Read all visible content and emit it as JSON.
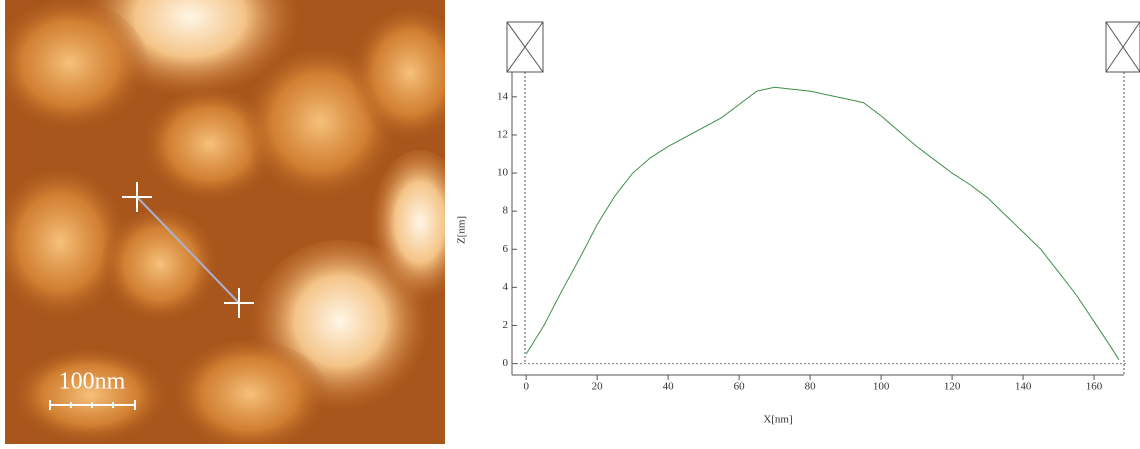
{
  "image": {
    "scale_label": "100nm"
  },
  "chart_data": {
    "type": "line",
    "xlabel": "X[nm]",
    "ylabel": "Z[nm]",
    "x": [
      0,
      5,
      10,
      15,
      20,
      25,
      30,
      35,
      40,
      45,
      50,
      55,
      60,
      65,
      70,
      75,
      80,
      85,
      90,
      95,
      100,
      105,
      110,
      115,
      120,
      125,
      130,
      135,
      140,
      145,
      150,
      155,
      160,
      165,
      167
    ],
    "series": [
      {
        "color": "#3f8f4a",
        "values": [
          0.5,
          2,
          3.8,
          5.5,
          7.3,
          8.8,
          10,
          10.8,
          11.4,
          11.9,
          12.4,
          12.9,
          13.6,
          14.3,
          14.5,
          14.4,
          14.3,
          14.1,
          13.9,
          13.7,
          13,
          12.2,
          11.4,
          10.7,
          10,
          9.4,
          8.7,
          7.8,
          6.9,
          6,
          4.8,
          3.6,
          2.2,
          0.8,
          0.2
        ]
      }
    ],
    "xlim": [
      -4,
      169
    ],
    "ylim": [
      -0.6,
      15.2
    ],
    "xticks": [
      0,
      20,
      40,
      60,
      80,
      100,
      120,
      140,
      160
    ],
    "yticks": [
      0,
      2,
      4,
      6,
      8,
      10,
      12,
      14
    ]
  }
}
